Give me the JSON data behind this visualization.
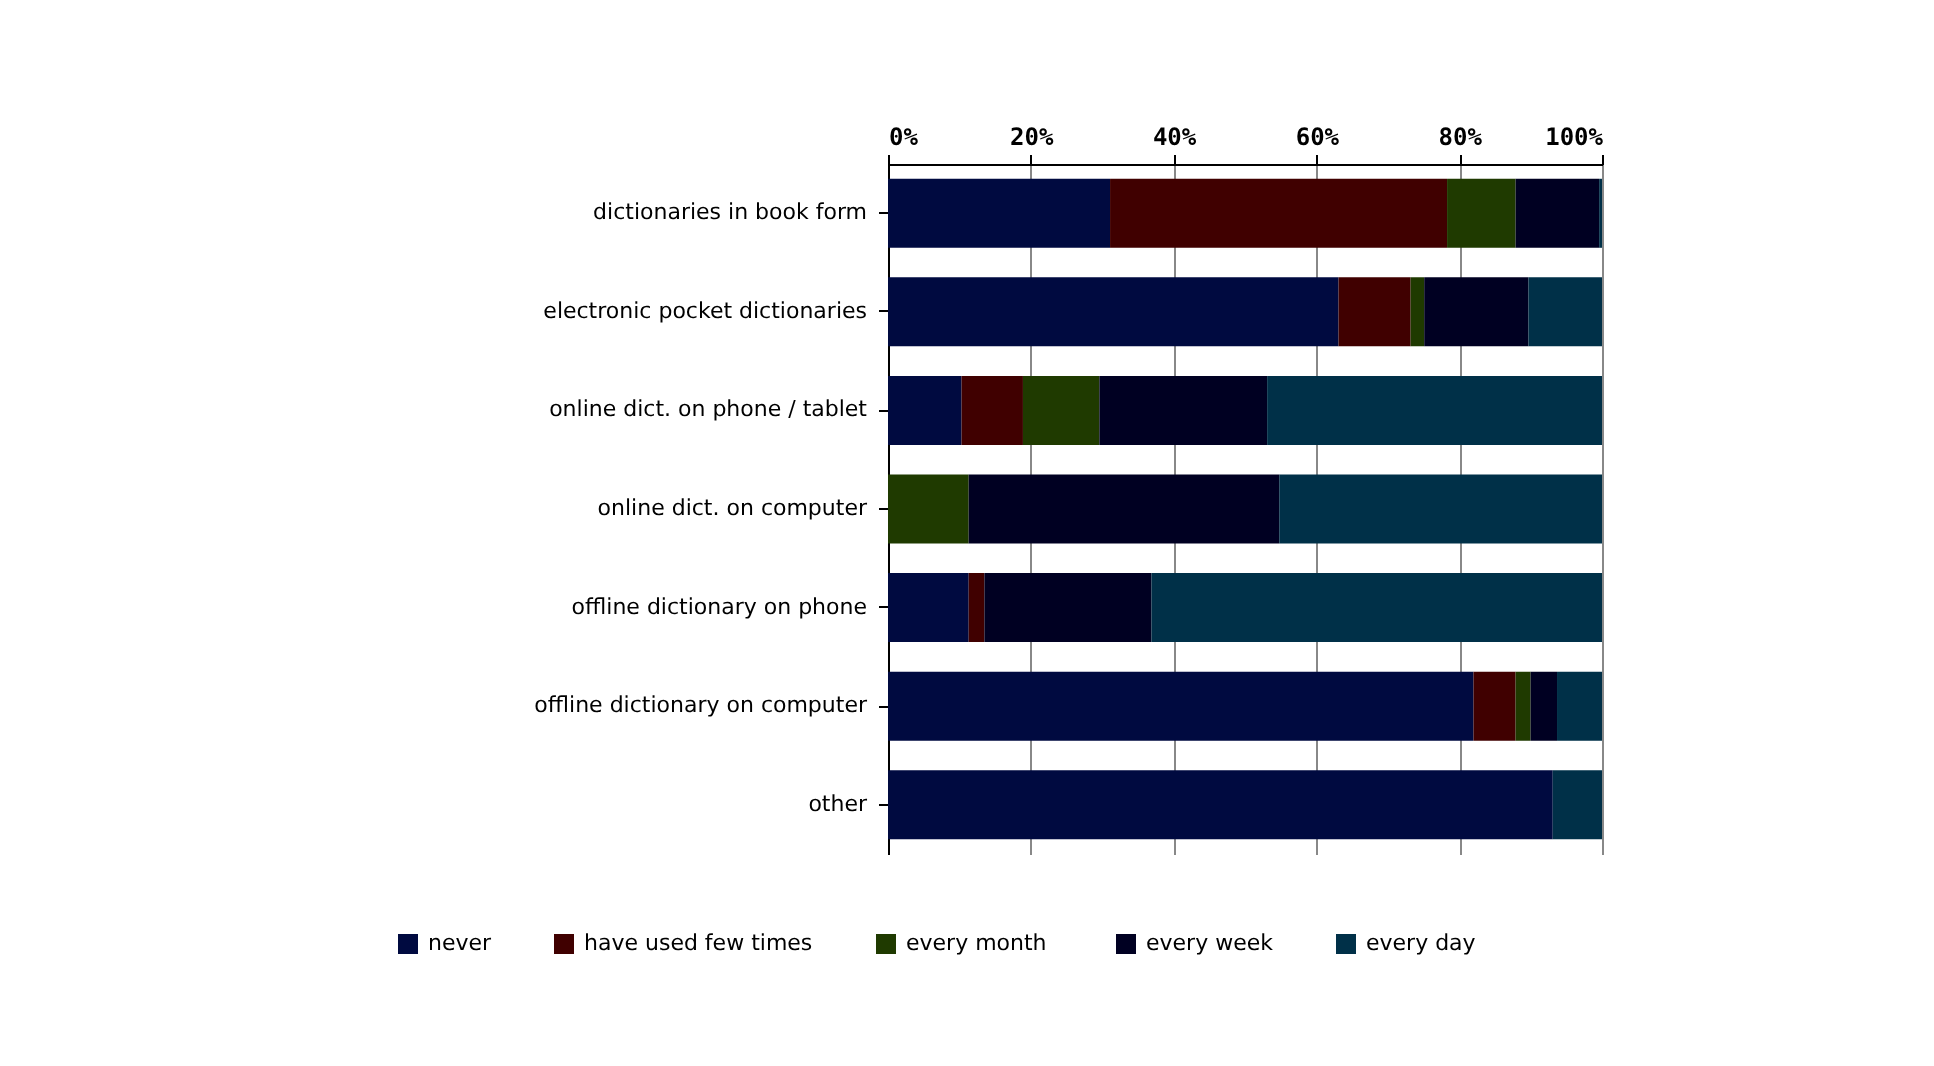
{
  "chart_data": {
    "type": "bar",
    "orientation": "horizontal",
    "stacked": true,
    "categories": [
      "dictionaries in book form",
      "electronic pocket dictionaries",
      "online dict. on phone / tablet",
      "online dict. on computer",
      "offline dictionary on phone",
      "offline dictionary on computer",
      "other"
    ],
    "series": [
      {
        "name": "never",
        "color": "#000a40",
        "values": [
          31.1,
          63.1,
          10.3,
          0,
          11.3,
          82.0,
          93.1
        ]
      },
      {
        "name": "have used few times",
        "color": "#400000",
        "values": [
          47.2,
          10.1,
          8.6,
          0,
          2.2,
          5.9,
          0
        ]
      },
      {
        "name": "every  month",
        "color": "#1f3a00",
        "values": [
          9.6,
          1.9,
          10.7,
          11.3,
          0,
          2.1,
          0
        ]
      },
      {
        "name": "every week",
        "color": "#000022",
        "values": [
          11.7,
          14.6,
          23.5,
          43.5,
          23.4,
          3.7,
          0
        ]
      },
      {
        "name": "every day",
        "color": "#003048",
        "values": [
          0.4,
          10.3,
          46.9,
          45.2,
          63.1,
          6.3,
          6.9
        ]
      }
    ],
    "xlim": [
      0,
      100
    ],
    "xticks": [
      {
        "value": 0,
        "label": "0%"
      },
      {
        "value": 20,
        "label": "20%"
      },
      {
        "value": 40,
        "label": "40%"
      },
      {
        "value": 60,
        "label": "60%"
      },
      {
        "value": 80,
        "label": "80%"
      },
      {
        "value": 100,
        "label": "100%"
      }
    ],
    "grid": "x",
    "legend": "bottom"
  }
}
